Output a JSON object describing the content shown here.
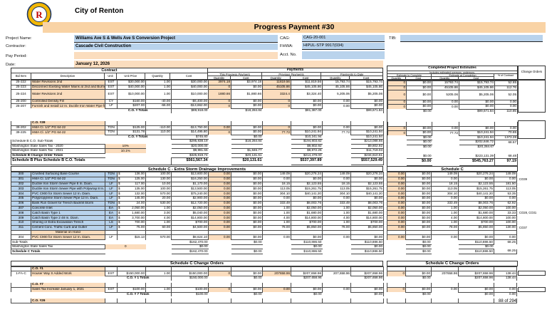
{
  "header": {
    "agency": "City of Renton",
    "banner_title": "Progress Payment #30",
    "pn_label": "Project Name:",
    "pn": "Williams Ave S & Wells Ave S Conversion Project",
    "ct_label": "Contractor:",
    "ct": "Cascade Civil Construction",
    "pp_label": "Pay Period:",
    "pp": "",
    "date_label": "Date:",
    "date": "January 12, 2026",
    "cag_label": "CAG:",
    "cag": "CAG-20-001",
    "fhwa_label": "FHWA:",
    "fhwa": "HIPUL-STP 9917(034)",
    "acct_label": "Acct. No.",
    "acct": "",
    "tib_label": "TIB:",
    "tib": ""
  },
  "cols": {
    "contract": "Contract",
    "payments": "Payments",
    "this_payment": "This Progress Payment",
    "previous": "Previous Payments",
    "to_date": "Payments to Date",
    "bid": "Bid Item",
    "desc": "Description",
    "unit": "Unit",
    "unit_price": "Unit Price",
    "qty": "Quantity",
    "cost": "Cost",
    "est_title": "Completed Project Estimates",
    "est_sub": "Includes estimated overruns, underruns.",
    "est_to_complete": "Estimate to Complete",
    "est_at_completion": "Estimate at Completion",
    "pct_contract": "% of Contract",
    "change_orders": "Change Orders"
  },
  "schedule_b": {
    "rows": [
      {
        "t": "i",
        "b": "25-222",
        "d": "Water Revisions 2nd",
        "u": "EST",
        "p": "$30,000.00",
        "q": "1.00",
        "c": "$30,000.00",
        "tq": "3974.18",
        "tc": "$3,974.18",
        "pq": "11819.56",
        "pc": "$11,819.56",
        "dq": "15,793.74",
        "dc": "$15,793.74",
        "eq": "0",
        "ec": "$0.00",
        "aq": "15793.74",
        "ac": "$15,793.74",
        "pct": "52.65"
      },
      {
        "t": "i",
        "b": "25-223",
        "d": "Disconnect Existing Water Mains at 2nd and Burnett",
        "u": "EST",
        "p": "$40,000.00",
        "q": "1.00",
        "c": "$40,000.00",
        "tq": "0",
        "tc": "$0.00",
        "pq": "45105.86",
        "pc": "$45,105.86",
        "dq": "45,105.86",
        "dc": "$45,105.86",
        "eq": "0",
        "ec": "$0.00",
        "aq": "45105.86",
        "ac": "$45,105.86",
        "pct": "112.76"
      },
      {
        "t": "i",
        "h": 13.5,
        "b": "25-224",
        "d": "Water Revisions 2nd",
        "u": "EST",
        "p": "$10,000.00",
        "q": "1.00",
        "c": "$10,000.00",
        "tq": "1880.66",
        "tc": "$1,880.66",
        "pq": "3324.4",
        "pc": "$3,324.40",
        "dq": "5,205.06",
        "dc": "$5,205.06",
        "eq": "0",
        "ec": "$0.00",
        "aq": "5205.06",
        "ac": "$5,205.06",
        "pct": "52.05"
      },
      {
        "t": "i",
        "b": "25-200",
        "d": "Controlled Density Fill",
        "u": "CY",
        "p": "$160.00",
        "q": "-40.00",
        "c": "-$6,400.00",
        "tq": "0",
        "tc": "$0.00",
        "pq": "0",
        "pc": "$0.00",
        "dq": "0.00",
        "dc": "$0.00",
        "eq": "0",
        "ec": "$0.00",
        "aq": "0.00",
        "ac": "$0.00",
        "pct": "0.00"
      },
      {
        "t": "i",
        "b": "25-207",
        "d": "Furnish and Install 12 In. Ductile Iron Water Pipe for Wa",
        "u": "LF",
        "p": "$207.00",
        "q": "-66.00",
        "c": "-$13,662.00",
        "tq": "0",
        "tc": "$0.00",
        "pq": "0",
        "pc": "$0.00",
        "dq": "0.00",
        "dc": "$0.00",
        "eq": "0",
        "ec": "$0.00",
        "aq": "0.00",
        "ac": "$0.00",
        "pct": "0.00"
      },
      {
        "t": "t",
        "lbl": "C.O. # Totals",
        "c": "$89,918.00",
        "tc": "$18,284.84",
        "pc": "$81,387.00",
        "dc": "$99,671.84",
        "ec": "$0.00",
        "ac": "$99,671.84",
        "pct": "110.85"
      },
      {
        "t": "g",
        "h": 11
      },
      {
        "t": "co",
        "d": "C.O. #39"
      },
      {
        "t": "i",
        "b": "39-202",
        "d": "HMA Cl. 1/2\" PG 64-22",
        "u": "TON",
        "p": "$125.00",
        "q": "-110.00",
        "c": "-$13,750.00",
        "tq": "0.00",
        "tc": "$0.00",
        "pq": "0",
        "pc": "$0.00",
        "dq": "0.00",
        "dc": "$0.00",
        "eq": "0",
        "ec": "$0.00",
        "aq": "0.00",
        "ac": "$0.00",
        "pct": "0.00"
      },
      {
        "t": "i",
        "b": "39-225",
        "d": "HMA Cl. 1/2\" PG 64-22",
        "u": "TON",
        "p": "$131.78",
        "q": "110.00",
        "c": "$14,495.80",
        "tq": "0",
        "tc": "$0.00",
        "pq": "77.72",
        "pc": "$10,241.94",
        "dq": "77.72",
        "dc": "$10,241.94",
        "eq": "0",
        "ec": "$0.00",
        "aq": "77.72",
        "ac": "$10,241.94",
        "pct": "70.65"
      },
      {
        "t": "t",
        "lbl": "C.O. # Totals",
        "c": "$745.80",
        "tc": "$0.00",
        "pc": "$10,241.94",
        "dc": "$10,241.94",
        "ec": "$0.00",
        "ac": "$10,241.94",
        "pct": "1373.28"
      },
      {
        "t": "s",
        "d": "Schedule B C.O. Sub-Totals",
        "c": "$295,838.19",
        "tc": "$18,284.84",
        "pc": "$194,803.82",
        "dc": "$213,088.66",
        "ec": "$0.00",
        "ac": "$202,846.72",
        "pct": "68.57"
      },
      {
        "t": "x",
        "d": "Washington State Sales Tax - 2020",
        "rate": "10%",
        "c": "$20,000.00",
        "tc": "",
        "pc": "$9,802.92",
        "dc": "$9,802.92",
        "ec": "$0.00",
        "ac": "$20,284.67"
      },
      {
        "t": "x",
        "d": "Washington State Sales Tax - 2021",
        "rate": "10.1%",
        "c": "$9,981.55",
        "tc": "$1,846.77",
        "pc": "$9,872.26",
        "dc": "$11,719.03"
      },
      {
        "t": "s",
        "bold": 1,
        "d": "Schedule B Change Order Totals",
        "c": "$325,819.74",
        "tc": "$20,131.61",
        "pc": "$214,479.00",
        "dc": "$234,610.61",
        "ec": "$0.00",
        "ac": "$223,131.39",
        "pct": "68.48"
      },
      {
        "t": "G",
        "h": 9.5,
        "d": "Schedule B Plus Schedule B C.O. Totals",
        "c": "$561,567.34",
        "tc": "$20,131.61",
        "pc": "$537,397.89",
        "dc": "$557,529.49",
        "ec": "$0.00",
        "ac": "$545,763.27",
        "pct": "97.19"
      }
    ]
  },
  "schedule_c": {
    "title": "Schedule C - Extra Storm Drainage Improvements",
    "right_title": "Schedule C",
    "rows": [
      {
        "t": "i",
        "b": "300",
        "d": "Crushed Surfacing Base Course",
        "u": "TON",
        "p": "$ 136.00",
        "q": "100.00",
        "c": "$13,600.00",
        "tq": "0.00",
        "tc": "$0.00",
        "pq": "149.09",
        "pc": "$20,276.24",
        "dq": "149.09",
        "dc": "$20,276.24",
        "eq": "0.00",
        "ec": "$0.00",
        "aq": "149.09",
        "ac": "$20,276.24",
        "pct": "149.09"
      },
      {
        "t": "i",
        "b": "301",
        "d": "HMA Cl. 1/2\" PG 64-22",
        "u": "TON",
        "p": "$ 125.00",
        "q": "130.00",
        "c": "$16,250.00",
        "tq": "0.00",
        "tc": "$0.00",
        "pq": "0.00",
        "pc": "$0.00",
        "dq": "0.00",
        "dc": "$0.00",
        "eq": "0.00",
        "ec": "$0.00",
        "aq": "0.00",
        "ac": "$0.00",
        "pct": "0.00",
        "n": "CO39"
      },
      {
        "t": "i",
        "b": "302",
        "d": "Ductile Iron Storm Sewer Pipe 8 In. Diam.",
        "u": "LF",
        "p": "$ 117.00",
        "q": "10.00",
        "c": "$1,170.00",
        "tq": "0.00",
        "tc": "$0.00",
        "pq": "18.15",
        "pc": "$2,123.55",
        "dq": "18.15",
        "dc": "$2,123.55",
        "eq": "0.00",
        "ec": "$0.00",
        "aq": "18.15",
        "ac": "$2,123.55",
        "pct": "181.50"
      },
      {
        "t": "i",
        "b": "303",
        "d": "Ductile Iron Storm Sewer Pipe with Polywrap 8 In.",
        "u": "LF",
        "p": "$ 135.00",
        "q": "100.00",
        "c": "$13,500.00",
        "tq": "0.00",
        "tc": "$0.00",
        "pq": "113.05",
        "pc": "$15,261.75",
        "dq": "113.05",
        "dc": "$15,261.75",
        "eq": "0.00",
        "ec": "$0.00",
        "aq": "113.05",
        "ac": "$15,261.75",
        "pct": "113.05"
      },
      {
        "t": "i",
        "b": "304",
        "d": "PVC C900 for Storm Sewer 12 In. Diam.",
        "u": "LF",
        "p": "$ 132.00",
        "q": "570.00",
        "c": "$75,240.00",
        "tq": "0.00",
        "tc": "$0.00",
        "pq": "304.10",
        "pc": "$40,141.20",
        "dq": "304.10",
        "dc": "$40,141.20",
        "eq": "0.00",
        "ec": "$0.00",
        "aq": "304.10",
        "ac": "$40,141.20",
        "pct": "53.35"
      },
      {
        "t": "i",
        "b": "305",
        "d": "Polypropylene Storm Sewer Pipe 12 In. Diam.",
        "u": "LF",
        "p": "$ 145.00",
        "q": "20.00",
        "c": "$2,900.00",
        "tq": "0.00",
        "tc": "$0.00",
        "pq": "0.00",
        "pc": "$0.00",
        "dq": "0.00",
        "dc": "$0.00",
        "eq": "0.00",
        "ec": "$0.00",
        "aq": "0.00",
        "ac": "$0.00",
        "pct": "0.00"
      },
      {
        "t": "i",
        "b": "306",
        "d": "Bank Run Gravel for Trench Backfill Storm",
        "u": "TON",
        "p": "$ 24.00",
        "q": "530.00",
        "c": "$12,720.00",
        "tq": "0.00",
        "tc": "$0.00",
        "pq": "333.49",
        "pc": "$8,003.76",
        "dq": "333.49",
        "dc": "$8,003.76",
        "eq": "0.00",
        "ec": "$0.00",
        "aq": "333.49",
        "ac": "$8,003.76",
        "pct": "62.92"
      },
      {
        "t": "i",
        "b": "307",
        "d": "Concrete Inlet",
        "u": "EA",
        "p": "$ 2,050.00",
        "q": "1.00",
        "c": "$2,050.00",
        "tq": "0.00",
        "tc": "$0.00",
        "pq": "1.00",
        "pc": "$2,050.00",
        "dq": "1.00",
        "dc": "$2,050.00",
        "eq": "0.00",
        "ec": "$0.00",
        "aq": "1.00",
        "ac": "$2,050.00",
        "pct": "100.00"
      },
      {
        "t": "i",
        "b": "308",
        "d": "Catch Basin Type 1",
        "u": "EA",
        "p": "$ 1,680.00",
        "q": "3.00",
        "c": "$5,040.00",
        "tq": "0.00",
        "tc": "$0.00",
        "pq": "1.00",
        "pc": "$1,680.00",
        "dq": "1.00",
        "dc": "$1,680.00",
        "eq": "0.00",
        "ec": "$0.00",
        "aq": "1.00",
        "ac": "$1,680.00",
        "pct": "33.33",
        "n": "CO28, CO31"
      },
      {
        "t": "i",
        "b": "309",
        "d": "Catch Basin Type 2 48 In. Diam.",
        "u": "EA",
        "p": "$ 3,700.00",
        "q": "4.00",
        "c": "$14,800.00",
        "tq": "0.00",
        "tc": "$0.00",
        "pq": "4.00",
        "pc": "$14,800.00",
        "dq": "4.00",
        "dc": "$14,800.00",
        "eq": "0.00",
        "ec": "$0.00",
        "aq": "4.00",
        "ac": "$14,800.00",
        "pct": "100.00"
      },
      {
        "t": "i",
        "b": "310",
        "d": "Shoring or Extra Excavation Trench",
        "u": "LS",
        "p": "$ 700.00",
        "q": "1.00",
        "c": "$700.00",
        "tq": "0.00",
        "tc": "$0.00",
        "pq": "1.00",
        "pc": "$700.00",
        "dq": "1.00",
        "dc": "$700.00",
        "eq": "0.00",
        "ec": "$0.00",
        "aq": "1.00",
        "ac": "$700.00",
        "pct": "100.00"
      },
      {
        "t": "i",
        "b": "311",
        "d": "Cement Conc. Traffic Curb and Gutter",
        "u": "LF",
        "p": "$ 75.00",
        "q": "60.00",
        "c": "$4,500.00",
        "tq": "0.00",
        "tc": "$0.00",
        "pq": "78.00",
        "pc": "$5,850.00",
        "dq": "78.00",
        "dc": "$5,850.00",
        "eq": "0.00",
        "ec": "$0.00",
        "aq": "78.00",
        "ac": "$5,850.00",
        "pct": "130.00",
        "n": "CO37"
      },
      {
        "t": "m",
        "d": "Material on Hand"
      },
      {
        "t": "i",
        "bg": "o",
        "b": "304",
        "d": "PVC C900 for Storm Sewer 12 In. Diam.",
        "u": "LF",
        "p": "$15.13",
        "q": "570.00",
        "c": "$8,624.10",
        "tq": "0.00",
        "tc": "$0.00",
        "pq": "0.00",
        "pc": "$0.00",
        "dq": "0.00",
        "dc": "$0.00",
        "eq": "0.00",
        "ec": "$0.00",
        "aq": "0.00",
        "ac": "$0.00",
        "pct": "0.00"
      },
      {
        "t": "s",
        "h": 6.5,
        "d": "Sub-Totals",
        "c": "$162,470.00",
        "tc": "$0.00",
        "pc": "$110,886.50",
        "dc": "$110,886.50",
        "ec": "$0.00",
        "ac": "$110,886.50",
        "pct": "68.25"
      },
      {
        "t": "x",
        "h": 6.5,
        "d": "Washington State Sales Tax",
        "rate": "0",
        "c": "$0.00",
        "tc": "",
        "pc": "$0.00",
        "dc": "$0.00",
        "ec": "$0.00",
        "ac": "$0.00"
      },
      {
        "t": "s",
        "h": 6.5,
        "bold": 1,
        "d": "Schedule C Totals",
        "c": "$162,470.00",
        "tc": "$0.00",
        "pc": "$110,886.50",
        "dc": "$110,886.50",
        "ec": "$0.00",
        "ac": "$110,886.50",
        "pct": "68.25"
      }
    ]
  },
  "schedule_c_co": {
    "title": "Schedule C Change Orders",
    "right_title": "Schedule C Change Orders",
    "rows": [
      {
        "t": "co",
        "d": "C.O. #1"
      },
      {
        "t": "i",
        "h": 7,
        "b": "1-FA-C",
        "d": "Houser Way S Added Work",
        "u": "EST",
        "p": "$150,000.00",
        "q": "1.00",
        "c": "$150,000.00",
        "tq": "0",
        "tc": "$0.00",
        "pq": "207658.96",
        "pc": "$207,658.96",
        "dq": "207,658.96",
        "dc": "$207,658.96",
        "eq": "0",
        "ec": "$0.00",
        "aq": "207658.96",
        "ac": "$207,658.96",
        "pct": "138.44"
      },
      {
        "t": "t",
        "h": 6,
        "lbl": "C.O. # 1 Totals",
        "c": "$150,000.00",
        "tc": "$0.00",
        "pc": "$207,658.96",
        "dc": "$207,658.96",
        "ec": "$0.00",
        "ac": "$207,658.96",
        "pct": "138.44"
      },
      {
        "t": "g",
        "h": 3
      },
      {
        "t": "co",
        "d": "C.O. #7"
      },
      {
        "t": "i",
        "h": 7,
        "b": "",
        "d": "Sales Tax Increase January 1, 2021",
        "u": "EST",
        "p": "$100.00",
        "q": "1.00",
        "c": "$100.00",
        "tq": "0",
        "tc": "$0.00",
        "pq": "0.00",
        "pc": "$0.00",
        "dq": "0.00",
        "dc": "$0.00",
        "eq": "0",
        "ec": "$0.00",
        "aq": "0.00",
        "ac": "$0.00",
        "pct": "0.00"
      },
      {
        "t": "t",
        "h": 6,
        "lbl": "C.O. # 7 Totals",
        "c": "$100.00",
        "tc": "$0.00",
        "pc": "$0.00",
        "dc": "$0.00",
        "ec": "$0.00",
        "ac": "$0.00",
        "pct": "0.00"
      },
      {
        "t": "g",
        "h": 3
      },
      {
        "t": "co",
        "d": "C.O. #26"
      }
    ]
  },
  "footer": {
    "page": "88 of 294"
  }
}
